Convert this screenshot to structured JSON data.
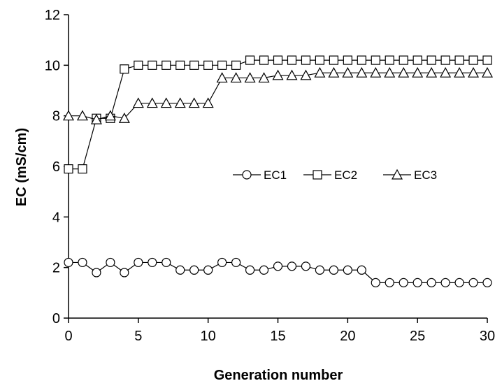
{
  "chart_data": {
    "type": "line",
    "title": "",
    "xlabel": "Generation number",
    "ylabel": "EC (mS/cm)",
    "xlim": [
      0,
      30
    ],
    "ylim": [
      0,
      12
    ],
    "xticks": [
      0,
      5,
      10,
      15,
      20,
      25,
      30
    ],
    "yticks": [
      0,
      2,
      4,
      6,
      8,
      10,
      12
    ],
    "grid": false,
    "legend_position": "center-right",
    "x": [
      0,
      1,
      2,
      3,
      4,
      5,
      6,
      7,
      8,
      9,
      10,
      11,
      12,
      13,
      14,
      15,
      16,
      17,
      18,
      19,
      20,
      21,
      22,
      23,
      24,
      25,
      26,
      27,
      28,
      29,
      30
    ],
    "series": [
      {
        "name": "EC1",
        "marker": "circle",
        "values": [
          2.2,
          2.2,
          1.8,
          2.2,
          1.8,
          2.2,
          2.2,
          2.2,
          1.9,
          1.9,
          1.9,
          2.2,
          2.2,
          1.9,
          1.9,
          2.05,
          2.05,
          2.05,
          1.9,
          1.9,
          1.9,
          1.9,
          1.4,
          1.4,
          1.4,
          1.4,
          1.4,
          1.4,
          1.4,
          1.4,
          1.4
        ]
      },
      {
        "name": "EC2",
        "marker": "square",
        "values": [
          5.9,
          5.9,
          7.9,
          7.9,
          9.85,
          10.0,
          10.0,
          10.0,
          10.0,
          10.0,
          10.0,
          10.0,
          10.0,
          10.2,
          10.2,
          10.2,
          10.2,
          10.2,
          10.2,
          10.2,
          10.2,
          10.2,
          10.2,
          10.2,
          10.2,
          10.2,
          10.2,
          10.2,
          10.2,
          10.2,
          10.2
        ]
      },
      {
        "name": "EC3",
        "marker": "triangle",
        "values": [
          8.0,
          8.0,
          7.85,
          8.0,
          7.9,
          8.5,
          8.5,
          8.5,
          8.5,
          8.5,
          8.5,
          9.5,
          9.5,
          9.5,
          9.5,
          9.6,
          9.6,
          9.6,
          9.7,
          9.7,
          9.7,
          9.7,
          9.7,
          9.7,
          9.7,
          9.7,
          9.7,
          9.7,
          9.7,
          9.7,
          9.7
        ]
      }
    ]
  }
}
